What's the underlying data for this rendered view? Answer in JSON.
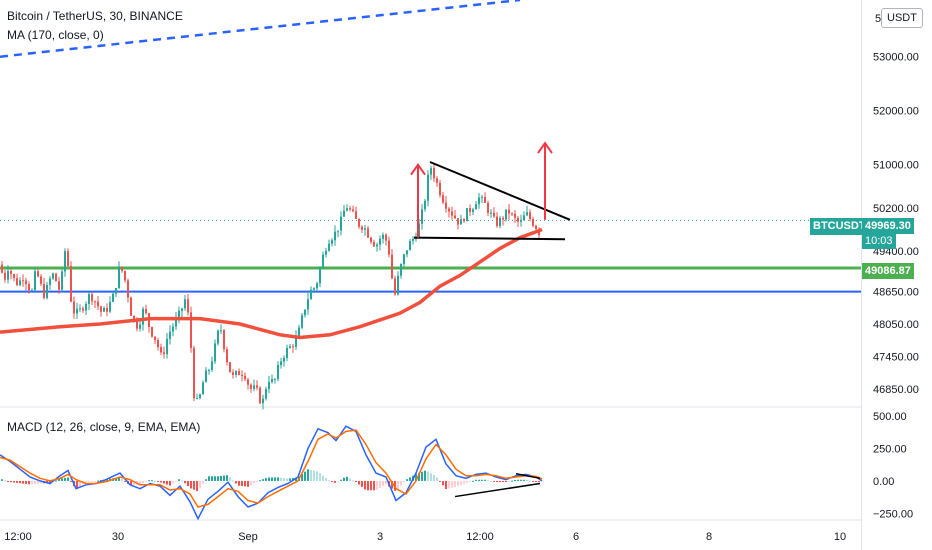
{
  "legend": {
    "title": "Bitcoin / TetherUS, 30, BINANCE",
    "ma": "MA (170, close, 0)",
    "macd": "MACD (12, 26, close, 9, EMA, EMA)"
  },
  "currency_button": "USDT",
  "symbol_tag": "BTCUSDT",
  "last_price": "49969.30",
  "countdown": "10:03",
  "level_label": "49086.87",
  "top_price_label": "5",
  "price_ticks": [
    "53000.00",
    "52000.00",
    "51000.00",
    "50200.00",
    "49400.00",
    "48650.00",
    "48050.00",
    "47450.00",
    "46850.00"
  ],
  "macd_ticks": [
    "500.00",
    "250.00",
    "0.00",
    "−250.00"
  ],
  "time_ticks": [
    "12:00",
    "30",
    "Sep",
    "3",
    "12:00",
    "6",
    "8",
    "10"
  ],
  "colors": {
    "up": "#26a69a",
    "down": "#ef5350",
    "ma": "#f0503c",
    "support": "#4caf50",
    "blue_line": "#2962ff",
    "macd_line": "#2962ff",
    "signal_line": "#ff6d00",
    "arrow": "#f23645"
  },
  "chart_data": [
    {
      "type": "candlestick",
      "title": "Bitcoin / TetherUS, 30, BINANCE",
      "ylim": [
        46550,
        54050
      ],
      "close_path": [
        [
          0,
          49150
        ],
        [
          4,
          48850
        ],
        [
          8,
          49100
        ],
        [
          12,
          48950
        ],
        [
          16,
          48800
        ],
        [
          20,
          48850
        ],
        [
          24,
          48950
        ],
        [
          28,
          48750
        ],
        [
          32,
          48650
        ],
        [
          36,
          49050
        ],
        [
          40,
          48800
        ],
        [
          44,
          48600
        ],
        [
          48,
          48750
        ],
        [
          52,
          49000
        ],
        [
          56,
          48850
        ],
        [
          60,
          48650
        ],
        [
          66,
          49550
        ],
        [
          72,
          48300
        ],
        [
          78,
          48250
        ],
        [
          84,
          48400
        ],
        [
          90,
          48600
        ],
        [
          96,
          48450
        ],
        [
          102,
          48250
        ],
        [
          108,
          48350
        ],
        [
          114,
          48600
        ],
        [
          120,
          49150
        ],
        [
          126,
          48800
        ],
        [
          132,
          48150
        ],
        [
          138,
          48000
        ],
        [
          144,
          48350
        ],
        [
          150,
          47950
        ],
        [
          156,
          47750
        ],
        [
          162,
          47400
        ],
        [
          168,
          47850
        ],
        [
          174,
          48050
        ],
        [
          180,
          48250
        ],
        [
          186,
          48550
        ],
        [
          190,
          47900
        ],
        [
          194,
          46750
        ],
        [
          198,
          46550
        ],
        [
          204,
          47050
        ],
        [
          210,
          47250
        ],
        [
          216,
          47700
        ],
        [
          220,
          48050
        ],
        [
          226,
          47450
        ],
        [
          232,
          47050
        ],
        [
          238,
          47150
        ],
        [
          244,
          47150
        ],
        [
          250,
          46850
        ],
        [
          256,
          46850
        ],
        [
          262,
          46550
        ],
        [
          268,
          47050
        ],
        [
          274,
          46950
        ],
        [
          280,
          47350
        ],
        [
          286,
          47550
        ],
        [
          292,
          47650
        ],
        [
          298,
          47850
        ],
        [
          304,
          48300
        ],
        [
          310,
          48650
        ],
        [
          316,
          48750
        ],
        [
          322,
          49250
        ],
        [
          328,
          49600
        ],
        [
          334,
          49700
        ],
        [
          340,
          49900
        ],
        [
          346,
          50250
        ],
        [
          352,
          50100
        ],
        [
          358,
          49900
        ],
        [
          364,
          49850
        ],
        [
          370,
          49650
        ],
        [
          376,
          49500
        ],
        [
          382,
          49700
        ],
        [
          386,
          49600
        ],
        [
          390,
          49300
        ],
        [
          394,
          48500
        ],
        [
          398,
          48900
        ],
        [
          402,
          49200
        ],
        [
          408,
          49500
        ],
        [
          414,
          49650
        ],
        [
          418,
          49800
        ],
        [
          424,
          50250
        ],
        [
          430,
          51000
        ],
        [
          436,
          50700
        ],
        [
          442,
          50400
        ],
        [
          448,
          50200
        ],
        [
          454,
          50050
        ],
        [
          460,
          49900
        ],
        [
          466,
          50100
        ],
        [
          472,
          50200
        ],
        [
          478,
          50400
        ],
        [
          484,
          50300
        ],
        [
          490,
          50100
        ],
        [
          496,
          49900
        ],
        [
          502,
          50000
        ],
        [
          508,
          50150
        ],
        [
          514,
          50000
        ],
        [
          520,
          49900
        ],
        [
          526,
          50100
        ],
        [
          532,
          49950
        ],
        [
          538,
          49800
        ],
        [
          541,
          49650
        ]
      ],
      "moving_average": {
        "name": "MA (170, close, 0)",
        "points": [
          [
            0,
            47900
          ],
          [
            60,
            48000
          ],
          [
            100,
            48050
          ],
          [
            150,
            48150
          ],
          [
            200,
            48150
          ],
          [
            240,
            48050
          ],
          [
            280,
            47850
          ],
          [
            300,
            47800
          ],
          [
            330,
            47850
          ],
          [
            360,
            48000
          ],
          [
            400,
            48250
          ],
          [
            420,
            48450
          ],
          [
            440,
            48750
          ],
          [
            460,
            48950
          ],
          [
            480,
            49200
          ],
          [
            500,
            49450
          ],
          [
            520,
            49650
          ],
          [
            535,
            49750
          ],
          [
            542,
            49800
          ]
        ]
      },
      "horizontal_levels": [
        {
          "value": 49086.87,
          "color": "green",
          "label": "49086.87"
        },
        {
          "value": 48650,
          "color": "blue"
        },
        {
          "value": 49969.3,
          "style": "dotted",
          "label": "49969.30"
        }
      ],
      "dashed_trendline": [
        [
          0,
          53000
        ],
        [
          520,
          54050
        ]
      ],
      "triangle": {
        "upper": [
          [
            430,
            51050
          ],
          [
            570,
            49980
          ]
        ],
        "lower": [
          [
            414,
            49650
          ],
          [
            565,
            49620
          ]
        ]
      },
      "arrows": [
        {
          "x": 418,
          "from": 49650,
          "to": 51000
        },
        {
          "x": 545,
          "from": 49980,
          "to": 51400
        }
      ]
    },
    {
      "type": "line",
      "title": "MACD (12, 26, close, 9, EMA, EMA)",
      "ylim": [
        -300,
        560
      ],
      "series": [
        {
          "name": "MACD",
          "values": [
            [
              0,
              200
            ],
            [
              10,
              150
            ],
            [
              20,
              90
            ],
            [
              30,
              30
            ],
            [
              40,
              0
            ],
            [
              50,
              -20
            ],
            [
              60,
              40
            ],
            [
              68,
              80
            ],
            [
              76,
              -60
            ],
            [
              86,
              -30
            ],
            [
              96,
              -20
            ],
            [
              106,
              10
            ],
            [
              120,
              60
            ],
            [
              130,
              -30
            ],
            [
              140,
              -60
            ],
            [
              150,
              -20
            ],
            [
              160,
              -40
            ],
            [
              170,
              -110
            ],
            [
              180,
              -40
            ],
            [
              190,
              -160
            ],
            [
              198,
              -290
            ],
            [
              208,
              -140
            ],
            [
              218,
              -80
            ],
            [
              228,
              -10
            ],
            [
              238,
              -120
            ],
            [
              248,
              -200
            ],
            [
              258,
              -170
            ],
            [
              268,
              -90
            ],
            [
              278,
              -50
            ],
            [
              288,
              -20
            ],
            [
              298,
              30
            ],
            [
              308,
              250
            ],
            [
              318,
              400
            ],
            [
              328,
              370
            ],
            [
              336,
              310
            ],
            [
              346,
              420
            ],
            [
              356,
              380
            ],
            [
              366,
              200
            ],
            [
              376,
              60
            ],
            [
              386,
              30
            ],
            [
              396,
              -150
            ],
            [
              406,
              -90
            ],
            [
              416,
              60
            ],
            [
              426,
              260
            ],
            [
              436,
              320
            ],
            [
              446,
              130
            ],
            [
              456,
              40
            ],
            [
              466,
              20
            ],
            [
              476,
              50
            ],
            [
              486,
              60
            ],
            [
              496,
              30
            ],
            [
              506,
              10
            ],
            [
              516,
              40
            ],
            [
              526,
              50
            ],
            [
              536,
              30
            ],
            [
              542,
              0
            ]
          ]
        },
        {
          "name": "Signal",
          "values": [
            [
              0,
              180
            ],
            [
              10,
              160
            ],
            [
              20,
              110
            ],
            [
              30,
              60
            ],
            [
              40,
              20
            ],
            [
              50,
              0
            ],
            [
              60,
              20
            ],
            [
              68,
              50
            ],
            [
              76,
              10
            ],
            [
              86,
              -20
            ],
            [
              96,
              -20
            ],
            [
              106,
              -5
            ],
            [
              120,
              30
            ],
            [
              130,
              10
            ],
            [
              140,
              -30
            ],
            [
              150,
              -30
            ],
            [
              160,
              -30
            ],
            [
              170,
              -70
            ],
            [
              180,
              -60
            ],
            [
              190,
              -100
            ],
            [
              198,
              -200
            ],
            [
              208,
              -180
            ],
            [
              218,
              -120
            ],
            [
              228,
              -60
            ],
            [
              238,
              -80
            ],
            [
              248,
              -150
            ],
            [
              258,
              -170
            ],
            [
              268,
              -120
            ],
            [
              278,
              -80
            ],
            [
              288,
              -40
            ],
            [
              298,
              0
            ],
            [
              308,
              150
            ],
            [
              318,
              320
            ],
            [
              328,
              360
            ],
            [
              336,
              330
            ],
            [
              346,
              380
            ],
            [
              356,
              390
            ],
            [
              366,
              280
            ],
            [
              376,
              140
            ],
            [
              386,
              60
            ],
            [
              396,
              -60
            ],
            [
              406,
              -100
            ],
            [
              416,
              0
            ],
            [
              426,
              170
            ],
            [
              436,
              280
            ],
            [
              446,
              200
            ],
            [
              456,
              90
            ],
            [
              466,
              40
            ],
            [
              476,
              40
            ],
            [
              486,
              50
            ],
            [
              496,
              40
            ],
            [
              506,
              20
            ],
            [
              516,
              30
            ],
            [
              526,
              40
            ],
            [
              536,
              35
            ],
            [
              542,
              15
            ]
          ]
        }
      ],
      "triangle": {
        "upper": [
          [
            516,
            55
          ],
          [
            540,
            20
          ]
        ],
        "lower": [
          [
            455,
            -120
          ],
          [
            540,
            -20
          ]
        ]
      }
    }
  ]
}
